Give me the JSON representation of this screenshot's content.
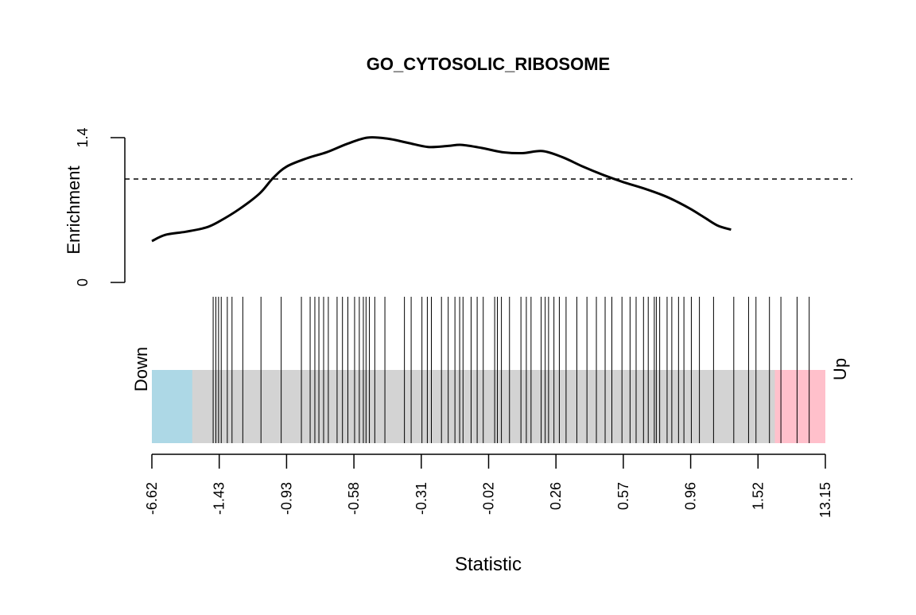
{
  "chart_data": {
    "type": "barcode",
    "title": "GO_CYTOSOLIC_RIBOSOME",
    "enrichment_panel": {
      "ylabel": "Enrichment",
      "ylim": [
        0,
        1.4
      ],
      "yticks": [
        "0",
        "1.4"
      ],
      "reference_level": 1.0,
      "curve": [
        [
          0.0,
          0.4
        ],
        [
          0.02,
          0.46
        ],
        [
          0.05,
          0.49
        ],
        [
          0.08,
          0.53
        ],
        [
          0.1,
          0.59
        ],
        [
          0.13,
          0.71
        ],
        [
          0.16,
          0.86
        ],
        [
          0.18,
          1.01
        ],
        [
          0.2,
          1.12
        ],
        [
          0.23,
          1.2
        ],
        [
          0.26,
          1.26
        ],
        [
          0.29,
          1.34
        ],
        [
          0.32,
          1.4
        ],
        [
          0.35,
          1.39
        ],
        [
          0.38,
          1.35
        ],
        [
          0.41,
          1.31
        ],
        [
          0.44,
          1.32
        ],
        [
          0.46,
          1.33
        ],
        [
          0.49,
          1.3
        ],
        [
          0.52,
          1.26
        ],
        [
          0.55,
          1.25
        ],
        [
          0.58,
          1.27
        ],
        [
          0.61,
          1.21
        ],
        [
          0.64,
          1.12
        ],
        [
          0.67,
          1.04
        ],
        [
          0.7,
          0.97
        ],
        [
          0.73,
          0.91
        ],
        [
          0.76,
          0.84
        ],
        [
          0.78,
          0.78
        ],
        [
          0.8,
          0.71
        ],
        [
          0.82,
          0.63
        ],
        [
          0.84,
          0.55
        ],
        [
          0.86,
          0.51
        ]
      ]
    },
    "barcode": {
      "down_label": "Down",
      "up_label": "Up",
      "down_region": [
        0.0,
        0.06
      ],
      "up_region": [
        0.925,
        1.0
      ],
      "colors": {
        "down": "#add8e6",
        "up": "#ffc0cb",
        "middle": "#d3d3d3"
      },
      "gene_positions": [
        0.091,
        0.095,
        0.099,
        0.103,
        0.112,
        0.119,
        0.135,
        0.162,
        0.192,
        0.222,
        0.235,
        0.242,
        0.248,
        0.255,
        0.262,
        0.275,
        0.283,
        0.291,
        0.301,
        0.308,
        0.314,
        0.318,
        0.323,
        0.331,
        0.346,
        0.375,
        0.385,
        0.401,
        0.409,
        0.415,
        0.43,
        0.44,
        0.45,
        0.457,
        0.462,
        0.474,
        0.483,
        0.492,
        0.509,
        0.513,
        0.519,
        0.531,
        0.548,
        0.556,
        0.563,
        0.578,
        0.584,
        0.589,
        0.597,
        0.605,
        0.615,
        0.631,
        0.646,
        0.66,
        0.673,
        0.683,
        0.698,
        0.71,
        0.719,
        0.73,
        0.737,
        0.746,
        0.749,
        0.754,
        0.765,
        0.772,
        0.782,
        0.79,
        0.801,
        0.813,
        0.834,
        0.864,
        0.886,
        0.897,
        0.917,
        0.934,
        0.958,
        0.976
      ]
    },
    "x_axis": {
      "label": "Statistic",
      "ticks": [
        "-6.62",
        "-1.43",
        "-0.93",
        "-0.58",
        "-0.31",
        "-0.02",
        "0.26",
        "0.57",
        "0.96",
        "1.52",
        "13.15"
      ]
    }
  }
}
